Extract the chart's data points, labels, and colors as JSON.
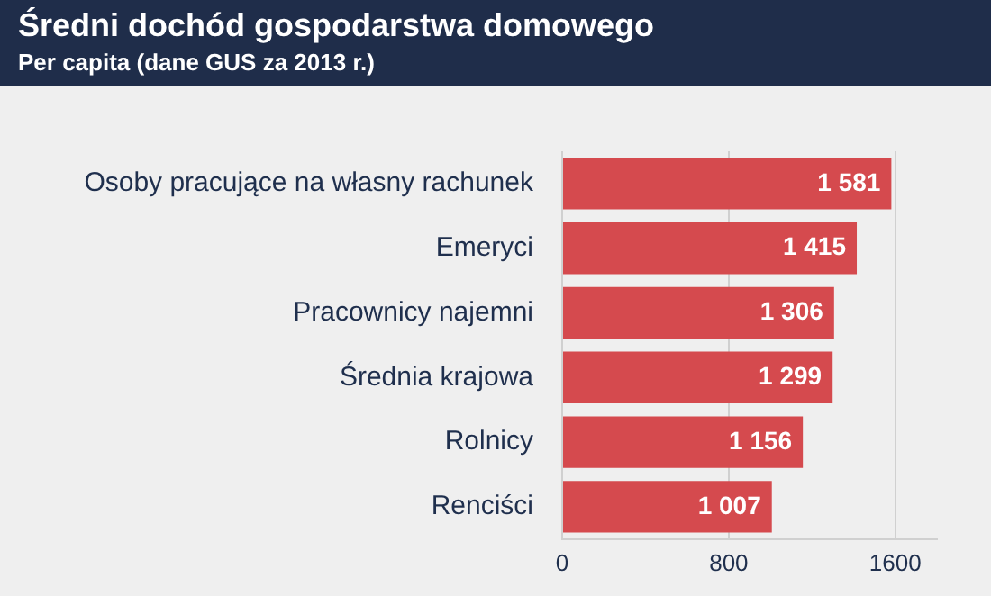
{
  "chart_data": {
    "type": "bar",
    "orientation": "horizontal",
    "title": "Średni dochód gospodarstwa domowego",
    "subtitle": "Per capita (dane GUS za 2013 r.)",
    "categories": [
      "Osoby pracujące na własny rachunek",
      "Emeryci",
      "Pracownicy najemni",
      "Średnia krajowa",
      "Rolnicy",
      "Renciści"
    ],
    "values": [
      1581,
      1415,
      1306,
      1299,
      1156,
      1007
    ],
    "value_labels": [
      "1 581",
      "1 415",
      "1 306",
      "1 299",
      "1 156",
      "1 007"
    ],
    "color": "#d54a4e",
    "xlim": [
      0,
      1800
    ],
    "xticks": [
      0,
      800,
      1600
    ],
    "grid": "x",
    "legend": false
  }
}
